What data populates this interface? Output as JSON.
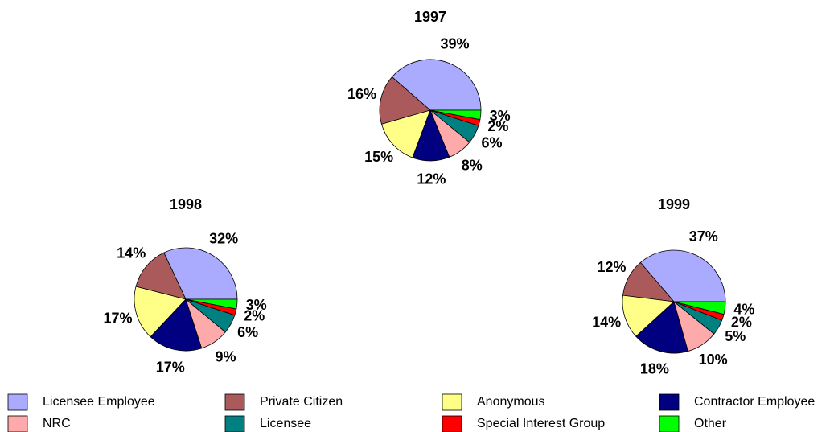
{
  "chart_data": [
    {
      "type": "pie",
      "title": "1997",
      "values": [
        39,
        16,
        15,
        12,
        8,
        6,
        2,
        3
      ],
      "value_labels": [
        "39%",
        "16%",
        "15%",
        "12%",
        "8%",
        "6%",
        "2%",
        "3%"
      ]
    },
    {
      "type": "pie",
      "title": "1998",
      "values": [
        32,
        14,
        17,
        17,
        9,
        6,
        2,
        3
      ],
      "value_labels": [
        "32%",
        "14%",
        "17%",
        "17%",
        "9%",
        "6%",
        "2%",
        "3%"
      ]
    },
    {
      "type": "pie",
      "title": "1999",
      "values": [
        37,
        12,
        14,
        18,
        10,
        5,
        2,
        4
      ],
      "value_labels": [
        "37%",
        "12%",
        "14%",
        "18%",
        "10%",
        "5%",
        "2%",
        "4%"
      ]
    }
  ],
  "legend": {
    "categories": [
      "Licensee Employee",
      "Private Citizen",
      "Anonymous",
      "Contractor Employee",
      "NRC",
      "Licensee",
      "Special Interest Group",
      "Other"
    ],
    "colors": [
      "#aaaaff",
      "#aa5a5a",
      "#ffff88",
      "#000080",
      "#ffaaaa",
      "#008080",
      "#ff0000",
      "#00ff00"
    ]
  }
}
